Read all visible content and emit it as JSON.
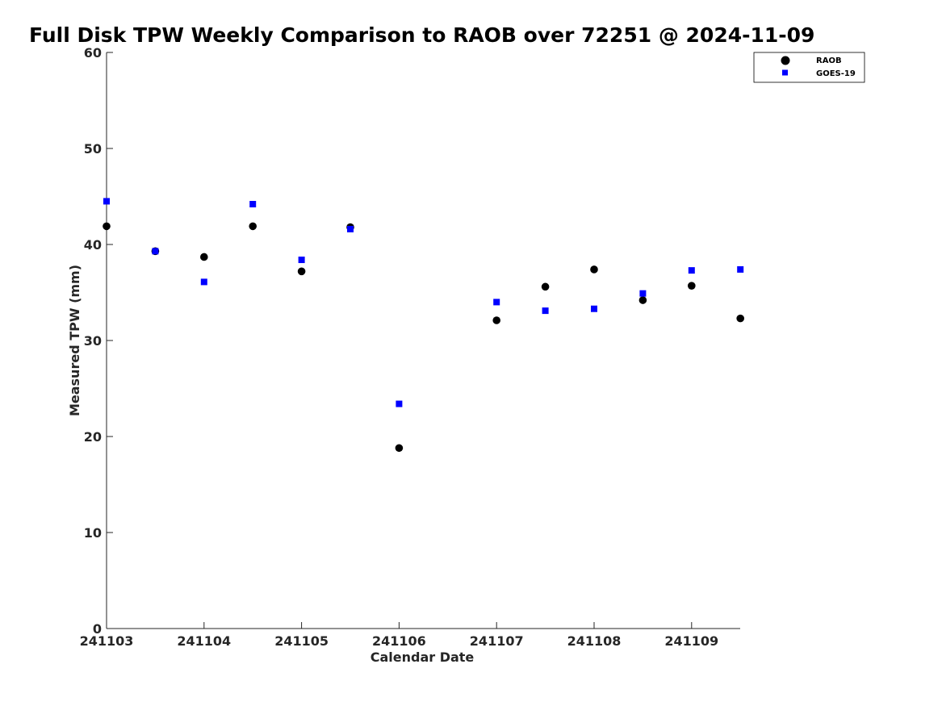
{
  "chart_data": {
    "type": "scatter",
    "title": "Full Disk TPW Weekly Comparison to RAOB over 72251 @ 2024-11-09",
    "xlabel": "Calendar Date",
    "ylabel": "Measured TPW (mm)",
    "x_tick_labels": [
      "241103",
      "241104",
      "241105",
      "241106",
      "241107",
      "241108",
      "241109"
    ],
    "y_ticks": [
      0,
      10,
      20,
      30,
      40,
      50,
      60
    ],
    "ylim": [
      0,
      60
    ],
    "grid": false,
    "legend_position": "top-right",
    "series": [
      {
        "name": "RAOB",
        "marker": "circle",
        "color": "#000000",
        "points": [
          {
            "x": "241103 00Z",
            "y": 41.9
          },
          {
            "x": "241103 12Z",
            "y": 39.3
          },
          {
            "x": "241104 00Z",
            "y": 38.7
          },
          {
            "x": "241104 12Z",
            "y": 41.9
          },
          {
            "x": "241105 00Z",
            "y": 37.2
          },
          {
            "x": "241105 12Z",
            "y": 41.8
          },
          {
            "x": "241106 00Z",
            "y": 18.8
          },
          {
            "x": "241107 00Z",
            "y": 32.1
          },
          {
            "x": "241107 12Z",
            "y": 35.6
          },
          {
            "x": "241108 00Z",
            "y": 37.4
          },
          {
            "x": "241108 12Z",
            "y": 34.2
          },
          {
            "x": "241109 00Z",
            "y": 35.7
          },
          {
            "x": "241109 12Z",
            "y": 32.3
          }
        ]
      },
      {
        "name": "GOES-19",
        "marker": "square",
        "color": "#0000ff",
        "points": [
          {
            "x": "241103 00Z",
            "y": 44.5
          },
          {
            "x": "241103 12Z",
            "y": 39.3
          },
          {
            "x": "241104 00Z",
            "y": 36.1
          },
          {
            "x": "241104 12Z",
            "y": 44.2
          },
          {
            "x": "241105 00Z",
            "y": 38.4
          },
          {
            "x": "241105 12Z",
            "y": 41.6
          },
          {
            "x": "241106 00Z",
            "y": 23.4
          },
          {
            "x": "241107 00Z",
            "y": 34.0
          },
          {
            "x": "241107 12Z",
            "y": 33.1
          },
          {
            "x": "241108 00Z",
            "y": 33.3
          },
          {
            "x": "241108 12Z",
            "y": 34.9
          },
          {
            "x": "241109 00Z",
            "y": 37.3
          },
          {
            "x": "241109 12Z",
            "y": 37.4
          }
        ]
      }
    ]
  }
}
